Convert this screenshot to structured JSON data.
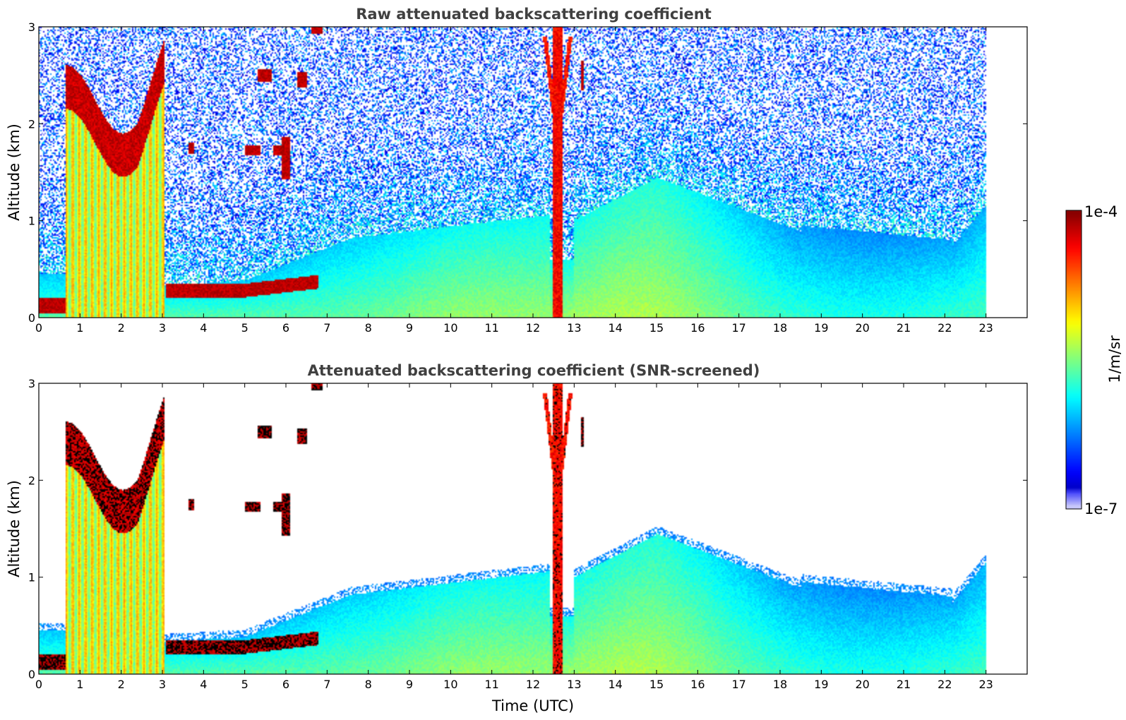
{
  "chart_data": [
    {
      "type": "heatmap",
      "title": "Raw attenuated backscattering coefficient",
      "xlabel": "",
      "ylabel": "Altitude (km)",
      "xlim": [
        0,
        24
      ],
      "ylim": [
        0,
        3
      ],
      "xticks": [
        "0",
        "1",
        "2",
        "3",
        "4",
        "5",
        "6",
        "7",
        "8",
        "9",
        "10",
        "11",
        "12",
        "13",
        "14",
        "15",
        "16",
        "17",
        "18",
        "19",
        "20",
        "21",
        "22",
        "23"
      ],
      "yticks": [
        "0",
        "1",
        "2",
        "3"
      ],
      "screened": false
    },
    {
      "type": "heatmap",
      "title": "Attenuated backscattering coefficient (SNR-screened)",
      "xlabel": "Time (UTC)",
      "ylabel": "Altitude (km)",
      "xlim": [
        0,
        24
      ],
      "ylim": [
        0,
        3
      ],
      "xticks": [
        "0",
        "1",
        "2",
        "3",
        "4",
        "5",
        "6",
        "7",
        "8",
        "9",
        "10",
        "11",
        "12",
        "13",
        "14",
        "15",
        "16",
        "17",
        "18",
        "19",
        "20",
        "21",
        "22",
        "23"
      ],
      "yticks": [
        "0",
        "1",
        "2",
        "3"
      ],
      "screened": true
    }
  ],
  "colorbar": {
    "max_label": "1e-4",
    "min_label": "1e-7",
    "unit_label": "1/m/sr",
    "scale": "log",
    "colormap": "jet"
  },
  "data_extent_hours": 23
}
